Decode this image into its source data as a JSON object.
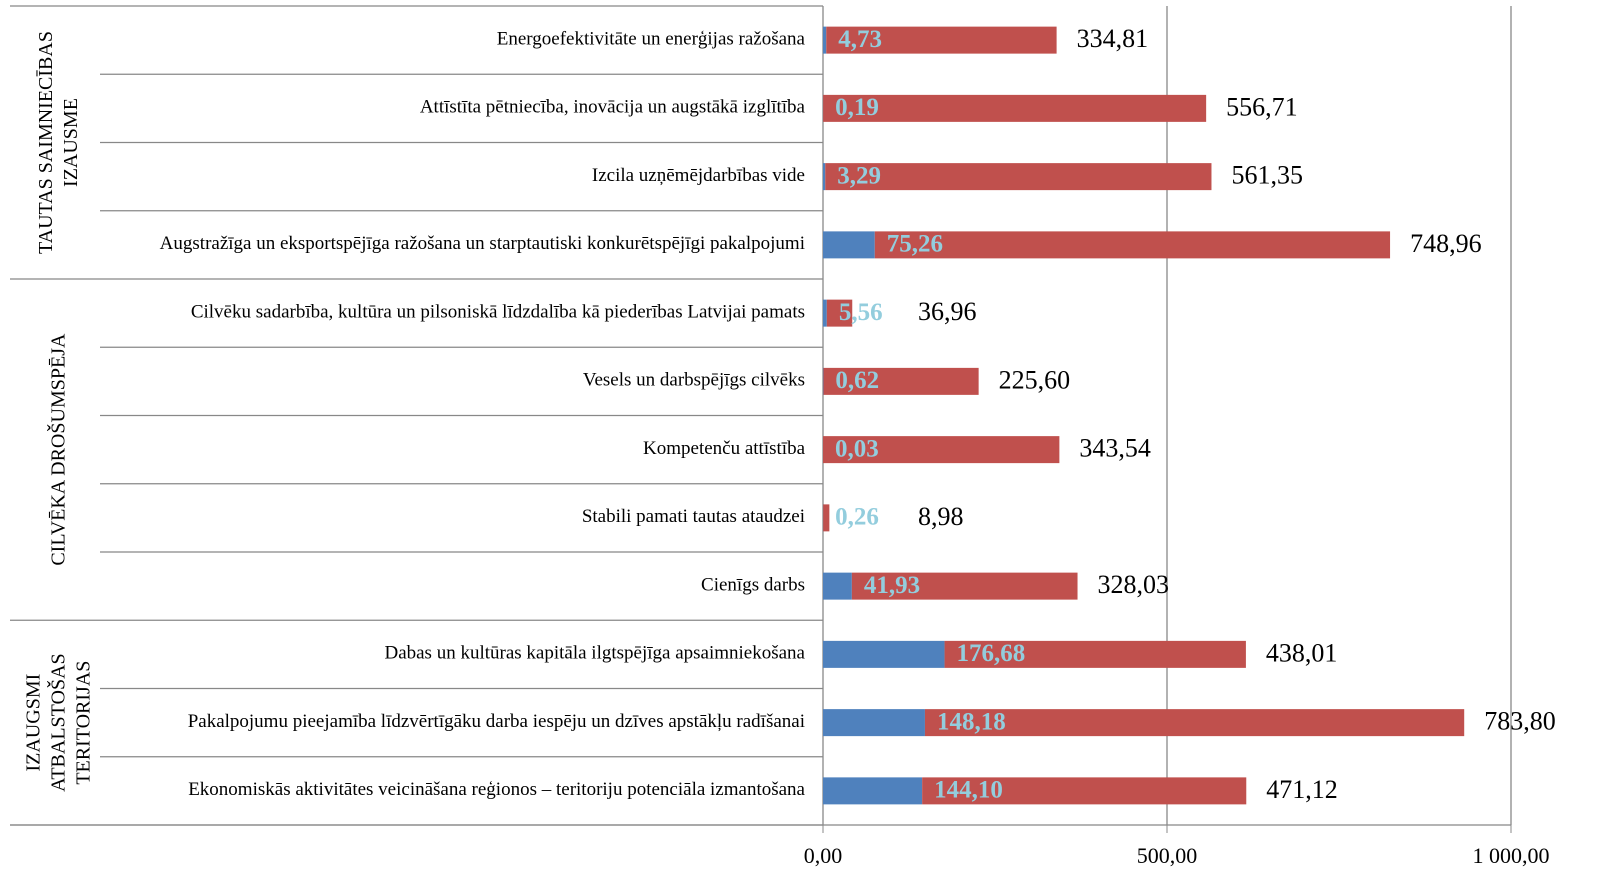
{
  "chart_data": {
    "type": "stacked-bar-horizontal",
    "groups": [
      {
        "name": [
          "TAUTAS SAIMNIECĪBAS",
          "IZAUSME"
        ],
        "categories": [
          "Energoefektivitāte un enerģijas ražošana",
          "Attīstīta pētniecība, inovācija un augstākā izglītība",
          "Izcila uzņēmējdarbības vide",
          "Augstražīga un eksportspējīga ražošana un starptautiski konkurētspējīgi pakalpojumi"
        ]
      },
      {
        "name": [
          "CILVĒKA DROŠUMSPĒJA"
        ],
        "categories": [
          "Cilvēku sadarbība, kultūra un pilsoniskā līdzdalība kā piederības Latvijai pamats",
          "Vesels un darbspējīgs cilvēks",
          "Kompetenču attīstība",
          "Stabili pamati tautas ataudzei",
          "Cienīgs darbs"
        ]
      },
      {
        "name": [
          "IZAUGSMI",
          "ATBALSTOŠAS",
          "TERITORIJAS"
        ],
        "categories": [
          "Dabas un kultūras kapitāla ilgtspējīga apsaimniekošana",
          "Pakalpojumu pieejamība līdzvērtīgāku darba iespēju un  dzīves apstākļu radīšanai",
          "Ekonomiskās aktivitātes veicināšana reģionos – teritoriju potenciāla izmantošana"
        ]
      }
    ],
    "series": [
      {
        "color": "#4f81bd",
        "values": [
          4.73,
          0.19,
          3.29,
          75.26,
          5.56,
          0.62,
          0.03,
          0.26,
          41.93,
          176.68,
          148.18,
          144.1
        ],
        "value_labels": [
          "4,73",
          "0,19",
          "3,29",
          "75,26",
          "5,56",
          "0,62",
          "0,03",
          "0,26",
          "41,93",
          "176,68",
          "148,18",
          "144,10"
        ]
      },
      {
        "color": "#c0504d",
        "values": [
          334.81,
          556.71,
          561.35,
          748.96,
          36.96,
          225.6,
          343.54,
          8.98,
          328.03,
          438.01,
          783.8,
          471.12
        ],
        "value_labels": [
          "334,81",
          "556,71",
          "561,35",
          "748,96",
          "36,96",
          "225,60",
          "343,54",
          "8,98",
          "328,03",
          "438,01",
          "783,80",
          "471,12"
        ]
      }
    ],
    "xlim": [
      0,
      1000
    ],
    "xticks": [
      {
        "value": 0,
        "label": "0,00"
      },
      {
        "value": 500,
        "label": "500,00"
      },
      {
        "value": 1000,
        "label": "1 000,00"
      }
    ],
    "grid": true
  }
}
